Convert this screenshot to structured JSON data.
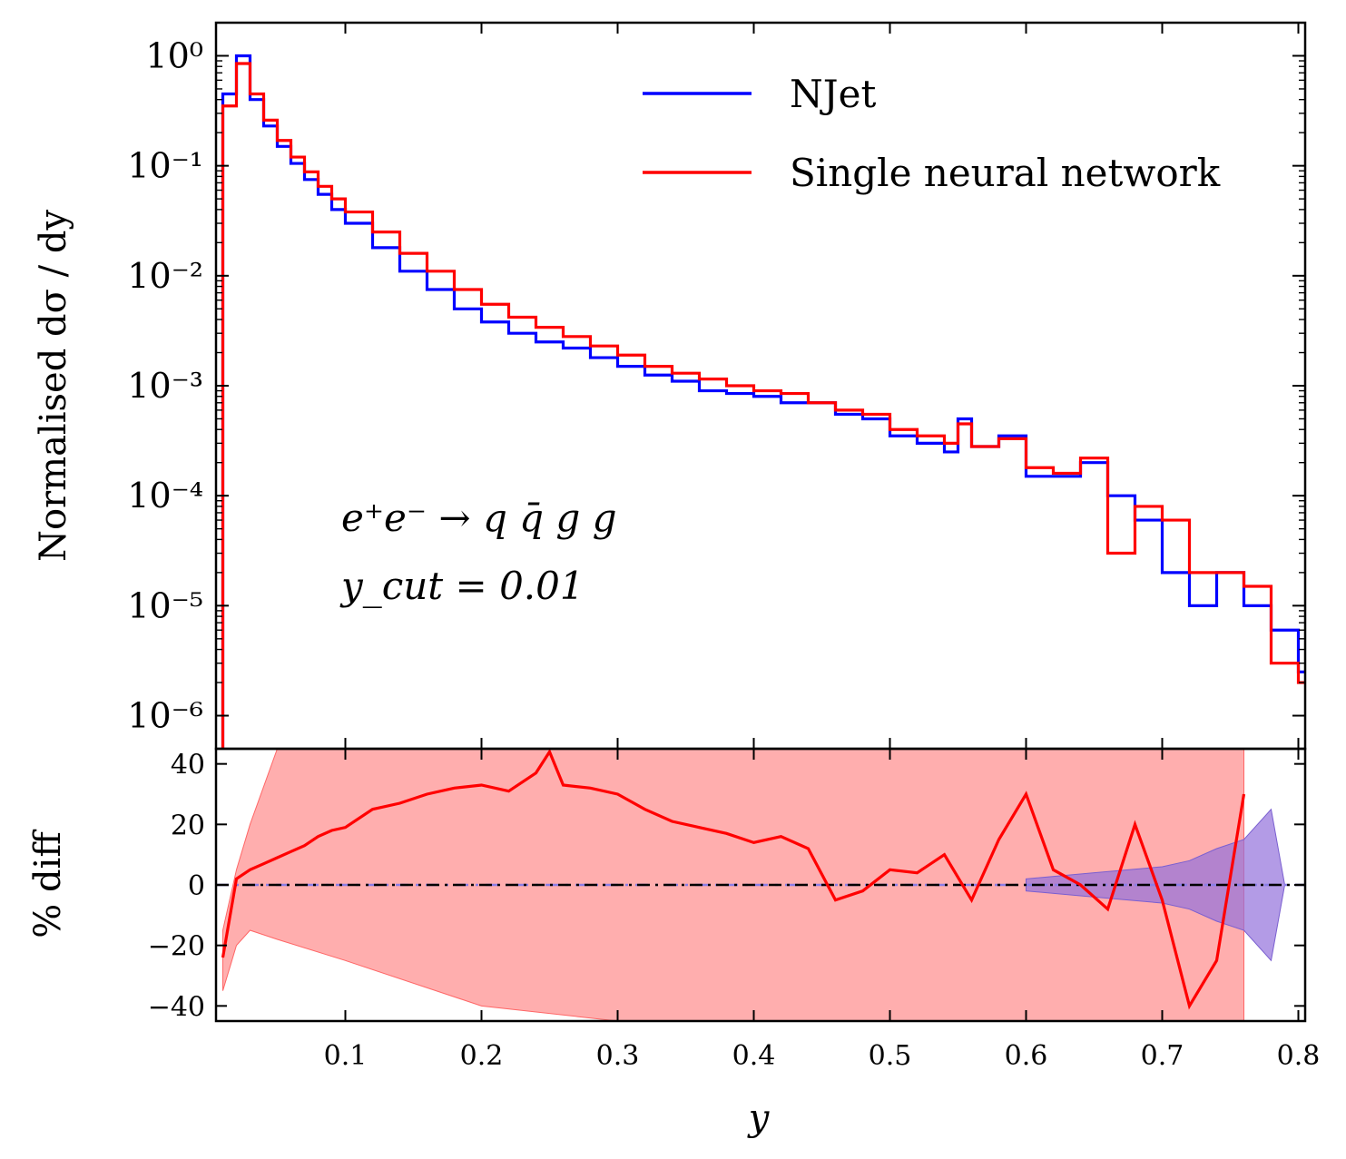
{
  "chart_data": [
    {
      "type": "line",
      "panel": "main",
      "yscale": "log",
      "xlim": [
        0.005,
        0.805
      ],
      "ylim": [
        5e-07,
        2
      ],
      "ylabel": "Normalised dσ / dy",
      "yticks": [
        {
          "value": 1,
          "label": "10⁰"
        },
        {
          "value": 0.1,
          "label": "10⁻¹"
        },
        {
          "value": 0.01,
          "label": "10⁻²"
        },
        {
          "value": 0.001,
          "label": "10⁻³"
        },
        {
          "value": 0.0001,
          "label": "10⁻⁴"
        },
        {
          "value": 1e-05,
          "label": "10⁻⁵"
        },
        {
          "value": 1e-06,
          "label": "10⁻⁶"
        }
      ],
      "legend": [
        "NJet",
        "Single neural network"
      ],
      "legend_position": "top-right",
      "annotations": [
        "e⁺e⁻ → q q̄ g g",
        "y_cut = 0.01"
      ],
      "colors": {
        "njet": "#0000ff",
        "nn": "#ff0000"
      },
      "series": [
        {
          "name": "NJet",
          "x": [
            0.01,
            0.02,
            0.03,
            0.04,
            0.05,
            0.06,
            0.07,
            0.08,
            0.09,
            0.1,
            0.12,
            0.14,
            0.16,
            0.18,
            0.2,
            0.22,
            0.24,
            0.26,
            0.28,
            0.3,
            0.32,
            0.34,
            0.36,
            0.38,
            0.4,
            0.42,
            0.44,
            0.46,
            0.48,
            0.5,
            0.52,
            0.54,
            0.55,
            0.56,
            0.58,
            0.6,
            0.62,
            0.64,
            0.66,
            0.68,
            0.7,
            0.72,
            0.74,
            0.76,
            0.78,
            0.8
          ],
          "values": [
            0.45,
            1.0,
            0.4,
            0.23,
            0.15,
            0.105,
            0.075,
            0.055,
            0.04,
            0.03,
            0.018,
            0.011,
            0.0075,
            0.005,
            0.0038,
            0.003,
            0.0025,
            0.0022,
            0.0018,
            0.0015,
            0.00125,
            0.0011,
            0.0009,
            0.00085,
            0.0008,
            0.0007,
            0.0007,
            0.00055,
            0.0005,
            0.00035,
            0.0003,
            0.00025,
            0.0005,
            0.00028,
            0.00035,
            0.00015,
            0.00015,
            0.0002,
            0.0001,
            6e-05,
            2e-05,
            1e-05,
            2e-05,
            1e-05,
            6e-06,
            2.5e-06
          ]
        },
        {
          "name": "Single neural network",
          "x": [
            0.01,
            0.02,
            0.03,
            0.04,
            0.05,
            0.06,
            0.07,
            0.08,
            0.09,
            0.1,
            0.12,
            0.14,
            0.16,
            0.18,
            0.2,
            0.22,
            0.24,
            0.26,
            0.28,
            0.3,
            0.32,
            0.34,
            0.36,
            0.38,
            0.4,
            0.42,
            0.44,
            0.46,
            0.48,
            0.5,
            0.52,
            0.54,
            0.55,
            0.56,
            0.58,
            0.6,
            0.62,
            0.64,
            0.66,
            0.68,
            0.7,
            0.72,
            0.74,
            0.76,
            0.78,
            0.8
          ],
          "values": [
            0.35,
            0.85,
            0.45,
            0.26,
            0.17,
            0.12,
            0.088,
            0.065,
            0.05,
            0.038,
            0.025,
            0.016,
            0.011,
            0.0075,
            0.0055,
            0.0042,
            0.0034,
            0.0028,
            0.0023,
            0.0019,
            0.0015,
            0.0013,
            0.00115,
            0.001,
            0.0009,
            0.00085,
            0.0007,
            0.0006,
            0.00055,
            0.0004,
            0.00035,
            0.0003,
            0.00045,
            0.00028,
            0.00033,
            0.00018,
            0.00016,
            0.00022,
            3e-05,
            8e-05,
            6e-05,
            2e-05,
            2e-05,
            1.5e-05,
            3e-06,
            2e-06
          ]
        }
      ]
    },
    {
      "type": "line",
      "panel": "ratio",
      "xlim": [
        0.005,
        0.805
      ],
      "ylim": [
        -45,
        45
      ],
      "xlabel": "y",
      "ylabel": "% diff",
      "xticks": [
        {
          "value": 0.1,
          "label": "0.1"
        },
        {
          "value": 0.2,
          "label": "0.2"
        },
        {
          "value": 0.3,
          "label": "0.3"
        },
        {
          "value": 0.4,
          "label": "0.4"
        },
        {
          "value": 0.5,
          "label": "0.5"
        },
        {
          "value": 0.6,
          "label": "0.6"
        },
        {
          "value": 0.7,
          "label": "0.7"
        },
        {
          "value": 0.8,
          "label": "0.8"
        }
      ],
      "yticks": [
        {
          "value": 40,
          "label": "40"
        },
        {
          "value": 20,
          "label": "20"
        },
        {
          "value": 0,
          "label": "0"
        },
        {
          "value": -20,
          "label": "−20"
        },
        {
          "value": -40,
          "label": "−40"
        }
      ],
      "series": [
        {
          "name": "Single neural network % diff",
          "x": [
            0.01,
            0.02,
            0.03,
            0.04,
            0.05,
            0.06,
            0.07,
            0.08,
            0.09,
            0.1,
            0.12,
            0.14,
            0.16,
            0.18,
            0.2,
            0.22,
            0.24,
            0.25,
            0.26,
            0.28,
            0.3,
            0.32,
            0.34,
            0.36,
            0.38,
            0.4,
            0.42,
            0.44,
            0.46,
            0.48,
            0.5,
            0.52,
            0.54,
            0.56,
            0.58,
            0.6,
            0.62,
            0.64,
            0.66,
            0.68,
            0.7,
            0.72,
            0.74,
            0.76
          ],
          "values": [
            -24,
            2,
            5,
            7,
            9,
            11,
            13,
            16,
            18,
            19,
            25,
            27,
            30,
            32,
            33,
            31,
            37,
            44,
            33,
            32,
            30,
            25,
            21,
            19,
            17,
            14,
            16,
            12,
            -5,
            -2,
            5,
            4,
            10,
            -5,
            15,
            30,
            5,
            0,
            -8,
            20,
            -5,
            -40,
            -25,
            30
          ]
        },
        {
          "name": "NJet uncertainty band",
          "x": [
            0.6,
            0.65,
            0.7,
            0.72,
            0.74,
            0.76,
            0.78,
            0.79
          ],
          "upper": [
            2,
            4,
            6,
            8,
            12,
            15,
            25,
            0
          ],
          "lower": [
            -2,
            -4,
            -6,
            -8,
            -12,
            -15,
            -25,
            0
          ]
        },
        {
          "name": "Single neural network uncertainty band",
          "x": [
            0.01,
            0.02,
            0.03,
            0.05,
            0.1,
            0.2,
            0.3,
            0.4,
            0.45,
            0.5,
            0.55,
            0.6,
            0.65,
            0.7,
            0.75,
            0.76
          ],
          "upper": [
            -15,
            5,
            20,
            45,
            45,
            45,
            45,
            45,
            45,
            45,
            45,
            45,
            45,
            45,
            45,
            45
          ],
          "lower": [
            -35,
            -20,
            -15,
            -18,
            -25,
            -40,
            -45,
            -45,
            -45,
            -45,
            -45,
            -45,
            -45,
            -45,
            -45,
            -45
          ]
        }
      ],
      "colors": {
        "band_nn": "#ff9a9a",
        "band_njet": "#9370db",
        "zero_line": "#000000",
        "zero_line_alt": "#8a7de6"
      }
    }
  ]
}
